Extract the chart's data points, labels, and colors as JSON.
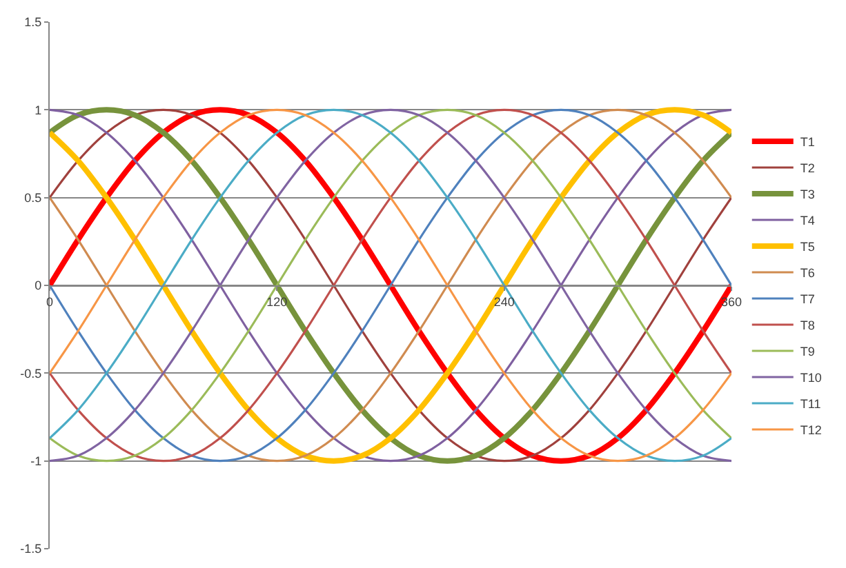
{
  "chart_data": {
    "type": "line",
    "x": [
      0,
      15,
      30,
      45,
      60,
      75,
      90,
      105,
      120,
      135,
      150,
      165,
      180,
      195,
      210,
      225,
      240,
      255,
      270,
      285,
      300,
      315,
      330,
      345,
      360
    ],
    "xlim": [
      0,
      360
    ],
    "xticks": [
      0,
      120,
      240,
      360
    ],
    "ylim": [
      -1.5,
      1.5
    ],
    "yticks": [
      -1.5,
      -1,
      -0.5,
      0,
      0.5,
      1,
      1.5
    ],
    "grid": "y",
    "legend": "right",
    "marker": "none",
    "line_style": "solid",
    "series": [
      {
        "name": "T1",
        "color": "#ff0000",
        "values": [
          0,
          0.26,
          0.5,
          0.71,
          0.87,
          0.97,
          1,
          0.97,
          0.87,
          0.71,
          0.5,
          0.26,
          0,
          -0.26,
          -0.5,
          -0.71,
          -0.87,
          -0.97,
          -1,
          -0.97,
          -0.87,
          -0.71,
          -0.5,
          -0.26,
          0
        ]
      },
      {
        "name": "T2",
        "color": "#a0413d",
        "values": [
          0.5,
          0.71,
          0.87,
          0.97,
          1,
          0.97,
          0.87,
          0.71,
          0.5,
          0.26,
          0,
          -0.26,
          -0.5,
          -0.71,
          -0.87,
          -0.97,
          -1,
          -0.97,
          -0.87,
          -0.71,
          -0.5,
          -0.26,
          0,
          0.26,
          0.5
        ]
      },
      {
        "name": "T3",
        "color": "#77933c",
        "values": [
          0.87,
          0.97,
          1,
          0.97,
          0.87,
          0.71,
          0.5,
          0.26,
          0,
          -0.26,
          -0.5,
          -0.71,
          -0.87,
          -0.97,
          -1,
          -0.97,
          -0.87,
          -0.71,
          -0.5,
          -0.26,
          0,
          0.26,
          0.5,
          0.71,
          0.87
        ]
      },
      {
        "name": "T4",
        "color": "#7f60a0",
        "values": [
          1,
          0.97,
          0.87,
          0.71,
          0.5,
          0.26,
          0,
          -0.26,
          -0.5,
          -0.71,
          -0.87,
          -0.97,
          -1,
          -0.97,
          -0.87,
          -0.71,
          -0.5,
          -0.26,
          0,
          0.26,
          0.5,
          0.71,
          0.87,
          0.97,
          1
        ]
      },
      {
        "name": "T5",
        "color": "#ffc000",
        "values": [
          0.87,
          0.71,
          0.5,
          0.26,
          0,
          -0.26,
          -0.5,
          -0.71,
          -0.87,
          -0.97,
          -1,
          -0.97,
          -0.87,
          -0.71,
          -0.5,
          -0.26,
          0,
          0.26,
          0.5,
          0.71,
          0.87,
          0.97,
          1,
          0.97,
          0.87
        ]
      },
      {
        "name": "T6",
        "color": "#d08b50",
        "values": [
          0.5,
          0.26,
          0,
          -0.26,
          -0.5,
          -0.71,
          -0.87,
          -0.97,
          -1,
          -0.97,
          -0.87,
          -0.71,
          -0.5,
          -0.26,
          0,
          0.26,
          0.5,
          0.71,
          0.87,
          0.97,
          1,
          0.97,
          0.87,
          0.71,
          0.5
        ]
      },
      {
        "name": "T7",
        "color": "#4f81bd",
        "values": [
          0,
          -0.26,
          -0.5,
          -0.71,
          -0.87,
          -0.97,
          -1,
          -0.97,
          -0.87,
          -0.71,
          -0.5,
          -0.26,
          0,
          0.26,
          0.5,
          0.71,
          0.87,
          0.97,
          1,
          0.97,
          0.87,
          0.71,
          0.5,
          0.26,
          0
        ]
      },
      {
        "name": "T8",
        "color": "#c0504d",
        "values": [
          -0.5,
          -0.71,
          -0.87,
          -0.97,
          -1,
          -0.97,
          -0.87,
          -0.71,
          -0.5,
          -0.26,
          0,
          0.26,
          0.5,
          0.71,
          0.87,
          0.97,
          1,
          0.97,
          0.87,
          0.71,
          0.5,
          0.26,
          0,
          -0.26,
          -0.5
        ]
      },
      {
        "name": "T9",
        "color": "#9bbb59",
        "values": [
          -0.87,
          -0.97,
          -1,
          -0.97,
          -0.87,
          -0.71,
          -0.5,
          -0.26,
          0,
          0.26,
          0.5,
          0.71,
          0.87,
          0.97,
          1,
          0.97,
          0.87,
          0.71,
          0.5,
          0.26,
          0,
          -0.26,
          -0.5,
          -0.71,
          -0.87
        ]
      },
      {
        "name": "T10",
        "color": "#8064a2",
        "values": [
          -1,
          -0.97,
          -0.87,
          -0.71,
          -0.5,
          -0.26,
          0,
          0.26,
          0.5,
          0.71,
          0.87,
          0.97,
          1,
          0.97,
          0.87,
          0.71,
          0.5,
          0.26,
          0,
          -0.26,
          -0.5,
          -0.71,
          -0.87,
          -0.97,
          -1
        ]
      },
      {
        "name": "T11",
        "color": "#4bacc6",
        "values": [
          -0.87,
          -0.71,
          -0.5,
          -0.26,
          0,
          0.26,
          0.5,
          0.71,
          0.87,
          0.97,
          1,
          0.97,
          0.87,
          0.71,
          0.5,
          0.26,
          0,
          -0.26,
          -0.5,
          -0.71,
          -0.87,
          -0.97,
          -1,
          -0.97,
          -0.87
        ]
      },
      {
        "name": "T12",
        "color": "#f79646",
        "values": [
          -0.5,
          -0.26,
          0,
          0.26,
          0.5,
          0.71,
          0.87,
          0.97,
          1,
          0.97,
          0.87,
          0.71,
          0.5,
          0.26,
          0,
          -0.26,
          -0.5,
          -0.71,
          -0.87,
          -0.97,
          -1,
          -0.97,
          -0.87,
          -0.71,
          -0.5
        ]
      }
    ]
  }
}
